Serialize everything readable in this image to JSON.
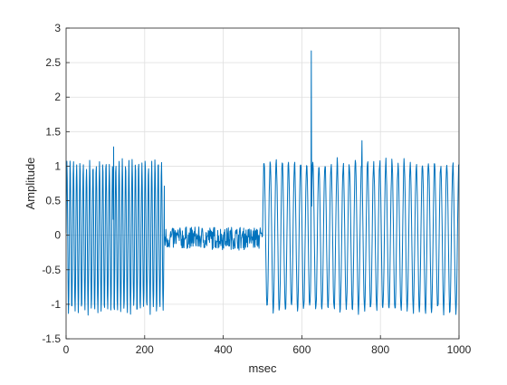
{
  "chart_data": {
    "type": "line",
    "title": "",
    "xlabel": "msec",
    "ylabel": "Amplitude",
    "xlim": [
      0,
      1000
    ],
    "ylim": [
      -1.5,
      3
    ],
    "xticks": [
      0,
      200,
      400,
      600,
      800,
      1000
    ],
    "xtick_labels": [
      "0",
      "200",
      "400",
      "600",
      "800",
      "1000"
    ],
    "yticks": [
      -1.5,
      -1,
      -0.5,
      0,
      0.5,
      1,
      1.5,
      2,
      2.5,
      3
    ],
    "ytick_labels": [
      "-1.5",
      "-1",
      "-0.5",
      "0",
      "0.5",
      "1",
      "1.5",
      "2",
      "2.5",
      "3"
    ],
    "grid": true,
    "series_color": "#0072BD",
    "segments": [
      {
        "kind": "oscillation",
        "x_start": 0,
        "x_end": 250,
        "period": 8.3,
        "amplitude_min": -1.15,
        "amplitude_max": 1.1
      },
      {
        "kind": "noise",
        "x_start": 250,
        "x_end": 500,
        "range": [
          -0.2,
          0.2
        ]
      },
      {
        "kind": "oscillation",
        "x_start": 500,
        "x_end": 1000,
        "period": 15.5,
        "amplitude_min": -1.15,
        "amplitude_max": 1.1
      }
    ],
    "peaks": [
      {
        "x": 121,
        "y": 1.28
      },
      {
        "x": 624,
        "y": 2.67
      },
      {
        "x": 753,
        "y": 1.37
      }
    ]
  }
}
